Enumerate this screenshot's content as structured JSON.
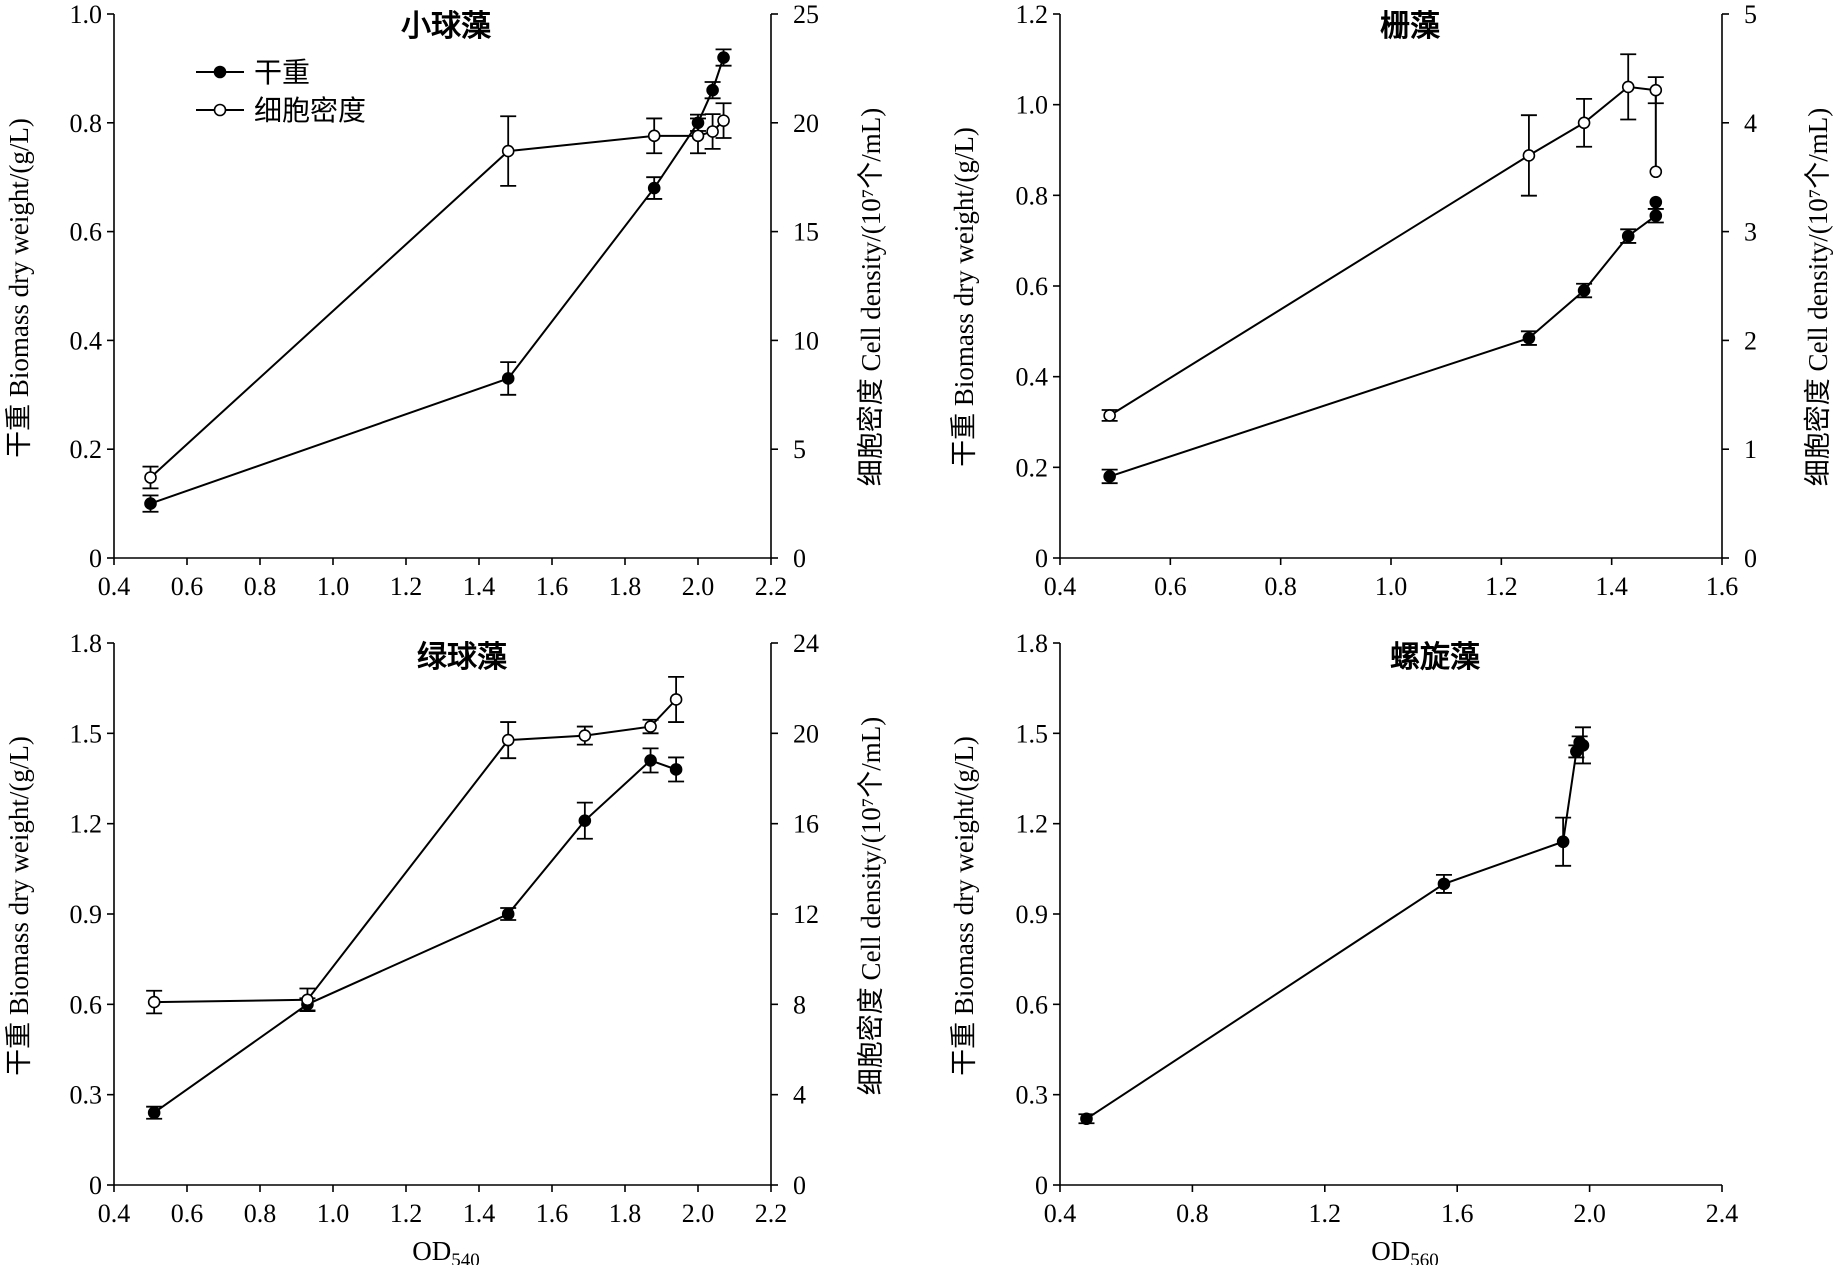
{
  "chart_data": [
    {
      "type": "line",
      "title": "小球藻",
      "xlabel": "",
      "ylabel_left": "干重 Biomass dry weight/(g/L)",
      "ylabel_right": "细胞密度 Cell density/(10⁷个/mL)",
      "xlim": [
        0.4,
        2.2
      ],
      "xticks": [
        "0.4",
        "0.6",
        "0.8",
        "1.0",
        "1.2",
        "1.4",
        "1.6",
        "1.8",
        "2.0",
        "2.2"
      ],
      "ylim_left": [
        0,
        1.0
      ],
      "yticks_left": [
        "0",
        "0.2",
        "0.4",
        "0.6",
        "0.8",
        "1.0"
      ],
      "ylim_right": [
        0,
        25
      ],
      "yticks_right": [
        "0",
        "5",
        "10",
        "15",
        "20",
        "25"
      ],
      "legend": [
        "干重",
        "细胞密度"
      ],
      "series": [
        {
          "name": "干重",
          "marker": "filled",
          "axis": "left",
          "x": [
            0.5,
            1.48,
            1.88,
            2.0,
            2.04,
            2.07
          ],
          "y": [
            0.1,
            0.33,
            0.68,
            0.8,
            0.86,
            0.92
          ],
          "err": [
            0.015,
            0.03,
            0.02,
            0.015,
            0.015,
            0.015
          ]
        },
        {
          "name": "细胞密度",
          "marker": "open",
          "axis": "right",
          "x": [
            0.5,
            1.48,
            1.88,
            2.0,
            2.04,
            2.07
          ],
          "y": [
            3.7,
            18.7,
            19.4,
            19.4,
            19.6,
            20.1
          ],
          "err": [
            0.5,
            1.6,
            0.8,
            0.8,
            0.8,
            0.8
          ]
        }
      ]
    },
    {
      "type": "line",
      "title": "栅藻",
      "xlabel": "",
      "ylabel_left": "干重 Biomass dry weight/(g/L)",
      "ylabel_right": "细胞密度 Cell density/(10⁷个/mL)",
      "xlim": [
        0.4,
        1.6
      ],
      "xticks": [
        "0.4",
        "0.6",
        "0.8",
        "1.0",
        "1.2",
        "1.4",
        "1.6"
      ],
      "ylim_left": [
        0,
        1.2
      ],
      "yticks_left": [
        "0",
        "0.2",
        "0.4",
        "0.6",
        "0.8",
        "1.0",
        "1.2"
      ],
      "ylim_right": [
        0,
        5
      ],
      "yticks_right": [
        "0",
        "1",
        "2",
        "3",
        "4",
        "5"
      ],
      "series": [
        {
          "name": "干重",
          "marker": "filled",
          "axis": "left",
          "x": [
            0.49,
            1.25,
            1.35,
            1.43,
            1.48,
            1.48
          ],
          "y": [
            0.18,
            0.485,
            0.59,
            0.71,
            0.755,
            0.785
          ],
          "err": [
            0.015,
            0.015,
            0.015,
            0.015,
            0.015,
            0.0
          ]
        },
        {
          "name": "细胞密度",
          "marker": "open",
          "axis": "right",
          "x": [
            0.49,
            1.25,
            1.35,
            1.43,
            1.48,
            1.48
          ],
          "y": [
            1.31,
            3.7,
            4.0,
            4.33,
            4.3,
            3.55
          ],
          "err": [
            0.05,
            0.37,
            0.22,
            0.3,
            0.12,
            0.0
          ]
        }
      ]
    },
    {
      "type": "line",
      "title": "绿球藻",
      "xlabel": "OD540",
      "ylabel_left": "干重 Biomass dry weight/(g/L)",
      "ylabel_right": "细胞密度 Cell density/(10⁷个/mL)",
      "xlim": [
        0.4,
        2.2
      ],
      "xticks": [
        "0.4",
        "0.6",
        "0.8",
        "1.0",
        "1.2",
        "1.4",
        "1.6",
        "1.8",
        "2.0",
        "2.2"
      ],
      "ylim_left": [
        0,
        1.8
      ],
      "yticks_left": [
        "0",
        "0.3",
        "0.6",
        "0.9",
        "1.2",
        "1.5",
        "1.8"
      ],
      "ylim_right": [
        0,
        24
      ],
      "yticks_right": [
        "0",
        "4",
        "8",
        "12",
        "16",
        "20",
        "24"
      ],
      "series": [
        {
          "name": "干重",
          "marker": "filled",
          "axis": "left",
          "x": [
            0.51,
            0.93,
            1.48,
            1.69,
            1.87,
            1.94
          ],
          "y": [
            0.24,
            0.6,
            0.9,
            1.21,
            1.41,
            1.38
          ],
          "err": [
            0.02,
            0.02,
            0.02,
            0.06,
            0.04,
            0.04
          ]
        },
        {
          "name": "细胞密度",
          "marker": "open",
          "axis": "right",
          "x": [
            0.51,
            0.93,
            1.48,
            1.69,
            1.87,
            1.94
          ],
          "y": [
            8.1,
            8.2,
            19.7,
            19.9,
            20.3,
            21.5
          ],
          "err": [
            0.5,
            0.5,
            0.8,
            0.4,
            0.3,
            1.0
          ]
        }
      ]
    },
    {
      "type": "line",
      "title": "螺旋藻",
      "xlabel": "OD560",
      "ylabel_left": "干重 Biomass dry weight/(g/L)",
      "xlim": [
        0.4,
        2.4
      ],
      "xticks": [
        "0.4",
        "0.8",
        "1.2",
        "1.6",
        "2.0",
        "2.4"
      ],
      "ylim_left": [
        0,
        1.8
      ],
      "yticks_left": [
        "0",
        "0.3",
        "0.6",
        "0.9",
        "1.2",
        "1.5",
        "1.8"
      ],
      "series": [
        {
          "name": "干重",
          "marker": "filled",
          "axis": "left",
          "x": [
            0.48,
            1.56,
            1.92,
            1.96,
            1.97,
            1.98
          ],
          "y": [
            0.22,
            1.0,
            1.14,
            1.44,
            1.47,
            1.46
          ],
          "err": [
            0.015,
            0.03,
            0.08,
            0.02,
            0.02,
            0.06
          ]
        }
      ]
    }
  ]
}
